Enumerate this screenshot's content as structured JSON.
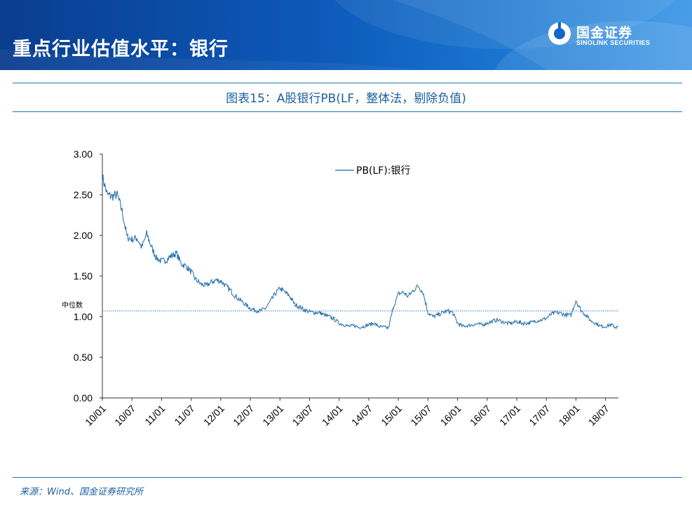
{
  "header": {
    "title": "重点行业估值水平：银行",
    "logo_cn": "国金证券",
    "logo_en": "SINOLINK SECURITIES"
  },
  "figure_title": "图表15：A股银行PB(LF，整体法，剔除负值)",
  "source": "来源：Wind、国金证券研究所",
  "colors": {
    "header": "#0c58b8",
    "line": "#1c6aa8",
    "accent": "#1b5f9e"
  },
  "chart_data": {
    "type": "line",
    "title": "",
    "xlabel": "",
    "ylabel": "",
    "ylim": [
      0,
      3
    ],
    "yticks": [
      "0.00",
      "0.50",
      "1.00",
      "1.50",
      "2.00",
      "2.50",
      "3.00"
    ],
    "xticks": [
      "10/01",
      "10/07",
      "11/01",
      "11/07",
      "12/01",
      "12/07",
      "13/01",
      "13/07",
      "14/01",
      "14/07",
      "15/01",
      "15/07",
      "16/01",
      "16/07",
      "17/01",
      "17/07",
      "18/01",
      "18/07"
    ],
    "grid": false,
    "legend": {
      "position": "top-center",
      "label": "PB(LF):银行"
    },
    "median": {
      "label": "中位数",
      "value": 1.07
    },
    "series": [
      {
        "name": "PB(LF):银行",
        "x": [
          "2010-01",
          "2010-02",
          "2010-03",
          "2010-04",
          "2010-05",
          "2010-06",
          "2010-07",
          "2010-08",
          "2010-09",
          "2010-10",
          "2010-11",
          "2010-12",
          "2011-01",
          "2011-02",
          "2011-03",
          "2011-04",
          "2011-05",
          "2011-06",
          "2011-07",
          "2011-08",
          "2011-09",
          "2011-10",
          "2011-11",
          "2011-12",
          "2012-01",
          "2012-02",
          "2012-03",
          "2012-04",
          "2012-05",
          "2012-06",
          "2012-07",
          "2012-08",
          "2012-09",
          "2012-10",
          "2012-11",
          "2012-12",
          "2013-01",
          "2013-02",
          "2013-03",
          "2013-04",
          "2013-05",
          "2013-06",
          "2013-07",
          "2013-08",
          "2013-09",
          "2013-10",
          "2013-11",
          "2013-12",
          "2014-01",
          "2014-02",
          "2014-03",
          "2014-04",
          "2014-05",
          "2014-06",
          "2014-07",
          "2014-08",
          "2014-09",
          "2014-10",
          "2014-11",
          "2014-12",
          "2015-01",
          "2015-02",
          "2015-03",
          "2015-04",
          "2015-05",
          "2015-06",
          "2015-07",
          "2015-08",
          "2015-09",
          "2015-10",
          "2015-11",
          "2015-12",
          "2016-01",
          "2016-02",
          "2016-03",
          "2016-04",
          "2016-05",
          "2016-06",
          "2016-07",
          "2016-08",
          "2016-09",
          "2016-10",
          "2016-11",
          "2016-12",
          "2017-01",
          "2017-02",
          "2017-03",
          "2017-04",
          "2017-05",
          "2017-06",
          "2017-07",
          "2017-08",
          "2017-09",
          "2017-10",
          "2017-11",
          "2017-12",
          "2018-01",
          "2018-02",
          "2018-03",
          "2018-04",
          "2018-05",
          "2018-06",
          "2018-07",
          "2018-08",
          "2018-09"
        ],
        "values": [
          2.72,
          2.5,
          2.48,
          2.5,
          2.3,
          1.98,
          1.95,
          1.97,
          1.85,
          2.02,
          1.85,
          1.72,
          1.68,
          1.7,
          1.75,
          1.78,
          1.65,
          1.62,
          1.55,
          1.45,
          1.4,
          1.38,
          1.42,
          1.45,
          1.44,
          1.38,
          1.32,
          1.25,
          1.2,
          1.15,
          1.1,
          1.08,
          1.07,
          1.1,
          1.18,
          1.28,
          1.35,
          1.3,
          1.25,
          1.15,
          1.12,
          1.08,
          1.06,
          1.05,
          1.05,
          1.02,
          1.0,
          0.97,
          0.92,
          0.9,
          0.88,
          0.89,
          0.87,
          0.88,
          0.9,
          0.92,
          0.88,
          0.87,
          0.86,
          1.12,
          1.28,
          1.3,
          1.25,
          1.32,
          1.38,
          1.3,
          1.05,
          1.0,
          1.02,
          1.05,
          1.07,
          1.05,
          0.92,
          0.88,
          0.89,
          0.9,
          0.91,
          0.9,
          0.92,
          0.94,
          0.96,
          0.94,
          0.92,
          0.92,
          0.94,
          0.92,
          0.92,
          0.93,
          0.95,
          0.96,
          0.98,
          1.03,
          1.05,
          1.04,
          1.02,
          1.02,
          1.2,
          1.08,
          1.02,
          0.95,
          0.92,
          0.88,
          0.88,
          0.9,
          0.87
        ]
      }
    ]
  }
}
